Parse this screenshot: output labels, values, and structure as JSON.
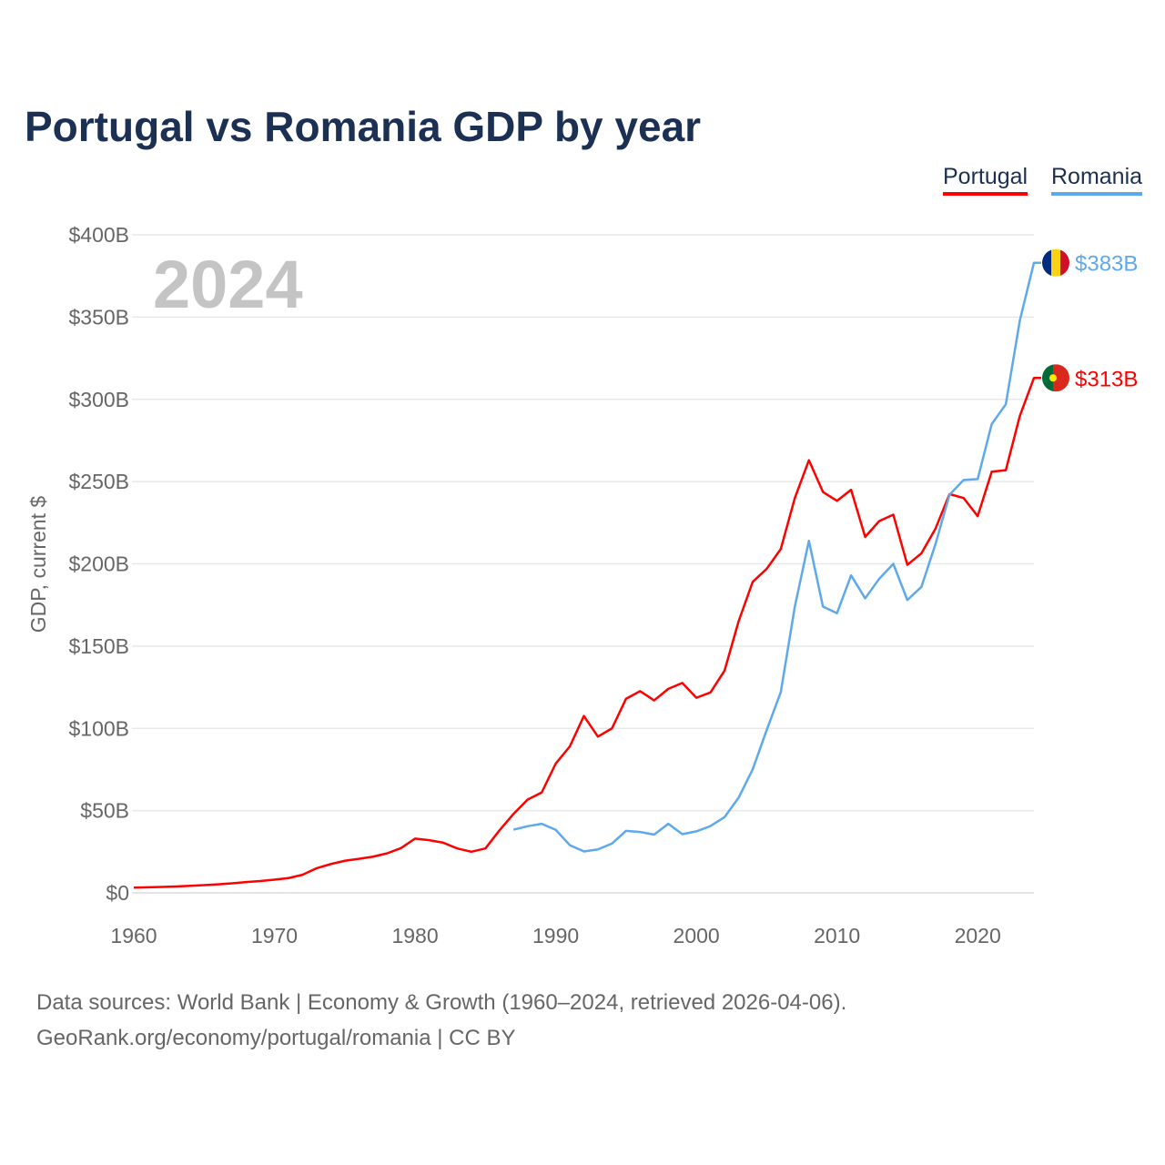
{
  "chart_data": {
    "type": "line",
    "title": "Portugal vs Romania GDP by year",
    "ylabel": "GDP, current $",
    "xlabel": "",
    "xlim": [
      1960,
      2024
    ],
    "ylim": [
      0,
      400
    ],
    "x_ticks": [
      "1960",
      "1970",
      "1980",
      "1990",
      "2000",
      "2010",
      "2020"
    ],
    "y_ticks": [
      "$0",
      "$50B",
      "$100B",
      "$150B",
      "$200B",
      "$250B",
      "$300B",
      "$350B",
      "$400B"
    ],
    "year_label": "2024",
    "grid": true,
    "legend_placement": "top-right",
    "series": [
      {
        "name": "Portugal",
        "color": "#ff0000",
        "end_label": "$313B",
        "flag": "portugal-flag",
        "start_year": 1960,
        "values": [
          3.2,
          3.4,
          3.6,
          3.9,
          4.3,
          4.7,
          5.2,
          5.8,
          6.6,
          7.2,
          8.0,
          9.0,
          11.0,
          15.0,
          17.5,
          19.5,
          20.7,
          22.0,
          24.0,
          27.2,
          33.0,
          32.0,
          30.5,
          27.0,
          25.0,
          27.0,
          38.0,
          48.0,
          56.7,
          61.0,
          78.6,
          89.0,
          107.5,
          95.0,
          100.0,
          118.0,
          122.6,
          117.0,
          124.0,
          127.6,
          118.6,
          121.8,
          135.0,
          165.0,
          189.0,
          197.0,
          209.0,
          240.0,
          263.0,
          243.7,
          238.3,
          245.0,
          216.4,
          226.0,
          229.9,
          199.4,
          206.4,
          221.4,
          242.4,
          240.0,
          229.0,
          256.0,
          256.9,
          290.0,
          313.0
        ]
      },
      {
        "name": "Romania",
        "color": "#5ea8ec",
        "end_label": "$383B",
        "flag": "romania-flag",
        "start_year": 1987,
        "values": [
          38.4,
          40.5,
          42.0,
          38.3,
          29.0,
          25.2,
          26.4,
          30.0,
          37.7,
          37.0,
          35.4,
          42.0,
          35.7,
          37.4,
          40.6,
          46.0,
          57.8,
          75.0,
          99.0,
          122.0,
          174.0,
          214.0,
          174.0,
          170.0,
          193.0,
          179.0,
          190.9,
          200.0,
          178.0,
          186.0,
          212.0,
          242.0,
          251.0,
          251.5,
          285.0,
          297.0,
          348.0,
          383.0
        ]
      }
    ]
  },
  "footer": {
    "line1": "Data sources: World Bank | Economy & Growth (1960–2024, retrieved 2026-04-06).",
    "line2": "GeoRank.org/economy/portugal/romania | CC BY"
  }
}
